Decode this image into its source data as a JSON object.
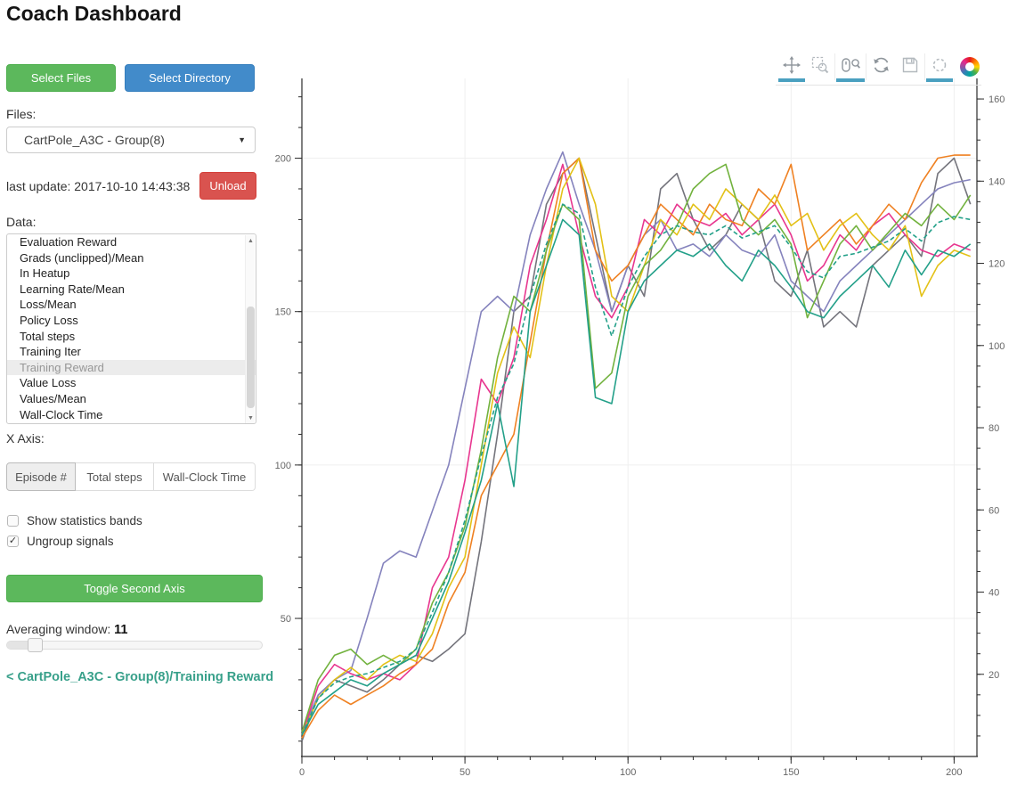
{
  "title": "Coach Dashboard",
  "sidebar": {
    "select_files_label": "Select Files",
    "select_directory_label": "Select Directory",
    "files_label": "Files:",
    "files_selected_value": "CartPole_A3C - Group(8)",
    "last_update_text": "last update: 2017-10-10 14:43:38",
    "unload_label": "Unload",
    "data_label": "Data:",
    "data_items": [
      "Evaluation Reward",
      "Grads (unclipped)/Mean",
      "In Heatup",
      "Learning Rate/Mean",
      "Loss/Mean",
      "Policy Loss",
      "Total steps",
      "Training Iter",
      "Training Reward",
      "Value Loss",
      "Values/Mean",
      "Wall-Clock Time"
    ],
    "data_selected_item": "Training Reward",
    "x_axis_label": "X Axis:",
    "x_axis_tabs": [
      {
        "label": "Episode #",
        "selected": true,
        "width": 78
      },
      {
        "label": "Total steps",
        "selected": false,
        "width": 88
      },
      {
        "label": "Wall-Clock Time",
        "selected": false,
        "width": 114
      }
    ],
    "checkboxes": [
      {
        "label": "Show statistics bands",
        "checked": false
      },
      {
        "label": "Ungroup signals",
        "checked": true
      }
    ],
    "toggle_second_axis_label": "Toggle Second Axis",
    "averaging_label": "Averaging window: ",
    "averaging_value": "11",
    "slider_position_pct": 11,
    "breadcrumb_link": "< CartPole_A3C - Group(8)/Training Reward",
    "colors": {
      "green_button": "#5cb85c",
      "blue_button": "#428bca",
      "red_button": "#d9534f",
      "link_teal": "#38a08a"
    }
  },
  "toolbar": {
    "active_color": "#4aa0c0",
    "tools": [
      {
        "name": "pan",
        "active": true
      },
      {
        "name": "box-zoom",
        "active": false
      },
      {
        "name": "wheel-zoom",
        "active": true
      },
      {
        "name": "reset",
        "active": false
      },
      {
        "name": "save",
        "active": false
      },
      {
        "name": "hover",
        "active": true
      },
      {
        "name": "logo",
        "active": false
      }
    ]
  },
  "chart_data": {
    "type": "line",
    "title": "",
    "xlabel": "",
    "ylabel": "",
    "legend": "none",
    "grid": "faint major gridlines",
    "xlim": [
      0,
      207
    ],
    "ylim_left": [
      5,
      226
    ],
    "ylim_right": [
      0,
      165
    ],
    "x_major_ticks": [
      0,
      50,
      100,
      150,
      200
    ],
    "x_minor_step": 10,
    "left_major_ticks": [
      50,
      100,
      150,
      200
    ],
    "left_minor_step": 10,
    "right_major_ticks": [
      20,
      40,
      60,
      80,
      100,
      120,
      140,
      160
    ],
    "right_minor_step": 5,
    "x": [
      0,
      5,
      10,
      15,
      20,
      25,
      30,
      35,
      40,
      45,
      50,
      55,
      60,
      65,
      70,
      75,
      80,
      85,
      90,
      95,
      100,
      105,
      110,
      115,
      120,
      125,
      130,
      135,
      140,
      145,
      150,
      155,
      160,
      165,
      170,
      175,
      180,
      185,
      190,
      195,
      200,
      205
    ],
    "series": [
      {
        "name": "gray",
        "color": "#74747c",
        "dash": null,
        "values": [
          10,
          25,
          30,
          28,
          26,
          30,
          35,
          38,
          36,
          40,
          45,
          75,
          110,
          150,
          155,
          185,
          195,
          200,
          175,
          150,
          165,
          155,
          190,
          195,
          180,
          170,
          175,
          185,
          180,
          160,
          155,
          170,
          145,
          150,
          145,
          165,
          170,
          175,
          168,
          195,
          200,
          185
        ]
      },
      {
        "name": "purple",
        "color": "#8583bd",
        "dash": null,
        "values": [
          13,
          25,
          30,
          33,
          50,
          68,
          72,
          70,
          85,
          100,
          125,
          150,
          155,
          150,
          175,
          190,
          202,
          185,
          170,
          150,
          165,
          175,
          180,
          170,
          172,
          168,
          175,
          170,
          168,
          175,
          160,
          155,
          150,
          160,
          165,
          170,
          175,
          180,
          185,
          190,
          192,
          193
        ]
      },
      {
        "name": "magenta",
        "color": "#e8368f",
        "dash": null,
        "values": [
          12,
          28,
          35,
          32,
          30,
          32,
          30,
          35,
          60,
          70,
          95,
          128,
          120,
          135,
          165,
          180,
          198,
          175,
          155,
          148,
          158,
          180,
          175,
          185,
          180,
          178,
          182,
          175,
          180,
          185,
          175,
          160,
          165,
          175,
          170,
          178,
          182,
          175,
          170,
          168,
          172,
          170
        ]
      },
      {
        "name": "orange",
        "color": "#ef8122",
        "dash": null,
        "values": [
          11,
          20,
          25,
          22,
          25,
          28,
          32,
          35,
          40,
          55,
          65,
          90,
          100,
          110,
          140,
          170,
          195,
          200,
          170,
          160,
          165,
          175,
          185,
          180,
          175,
          185,
          180,
          178,
          190,
          185,
          198,
          170,
          175,
          180,
          172,
          178,
          185,
          180,
          192,
          200,
          201,
          201
        ]
      },
      {
        "name": "gold",
        "color": "#e3c117",
        "dash": null,
        "values": [
          12,
          24,
          30,
          34,
          30,
          35,
          38,
          36,
          45,
          60,
          70,
          100,
          130,
          145,
          135,
          165,
          190,
          200,
          185,
          155,
          150,
          165,
          180,
          175,
          185,
          180,
          190,
          185,
          180,
          188,
          178,
          182,
          170,
          178,
          182,
          175,
          170,
          178,
          155,
          165,
          170,
          168
        ]
      },
      {
        "name": "green",
        "color": "#72b23e",
        "dash": null,
        "values": [
          13,
          30,
          38,
          40,
          35,
          38,
          35,
          40,
          55,
          65,
          80,
          105,
          135,
          155,
          150,
          170,
          185,
          180,
          125,
          130,
          155,
          165,
          170,
          178,
          190,
          195,
          198,
          180,
          175,
          180,
          172,
          148,
          160,
          172,
          178,
          170,
          176,
          182,
          178,
          185,
          180,
          188
        ]
      },
      {
        "name": "teal",
        "color": "#23a089",
        "dash": null,
        "values": [
          12,
          22,
          26,
          30,
          28,
          32,
          35,
          38,
          50,
          62,
          78,
          95,
          120,
          93,
          150,
          165,
          180,
          175,
          122,
          120,
          150,
          160,
          165,
          170,
          168,
          172,
          165,
          160,
          170,
          165,
          158,
          150,
          148,
          155,
          160,
          165,
          158,
          170,
          162,
          170,
          168,
          172
        ]
      },
      {
        "name": "teal-dashed",
        "color": "#23a089",
        "dash": [
          5,
          3
        ],
        "values": [
          12,
          24,
          29,
          31,
          32,
          34,
          36,
          40,
          52,
          65,
          82,
          103,
          122,
          133,
          155,
          172,
          185,
          182,
          158,
          142,
          158,
          168,
          175,
          178,
          176,
          175,
          178,
          174,
          176,
          178,
          171,
          163,
          161,
          168,
          169,
          171,
          173,
          177,
          173,
          179,
          181,
          180
        ]
      }
    ]
  }
}
